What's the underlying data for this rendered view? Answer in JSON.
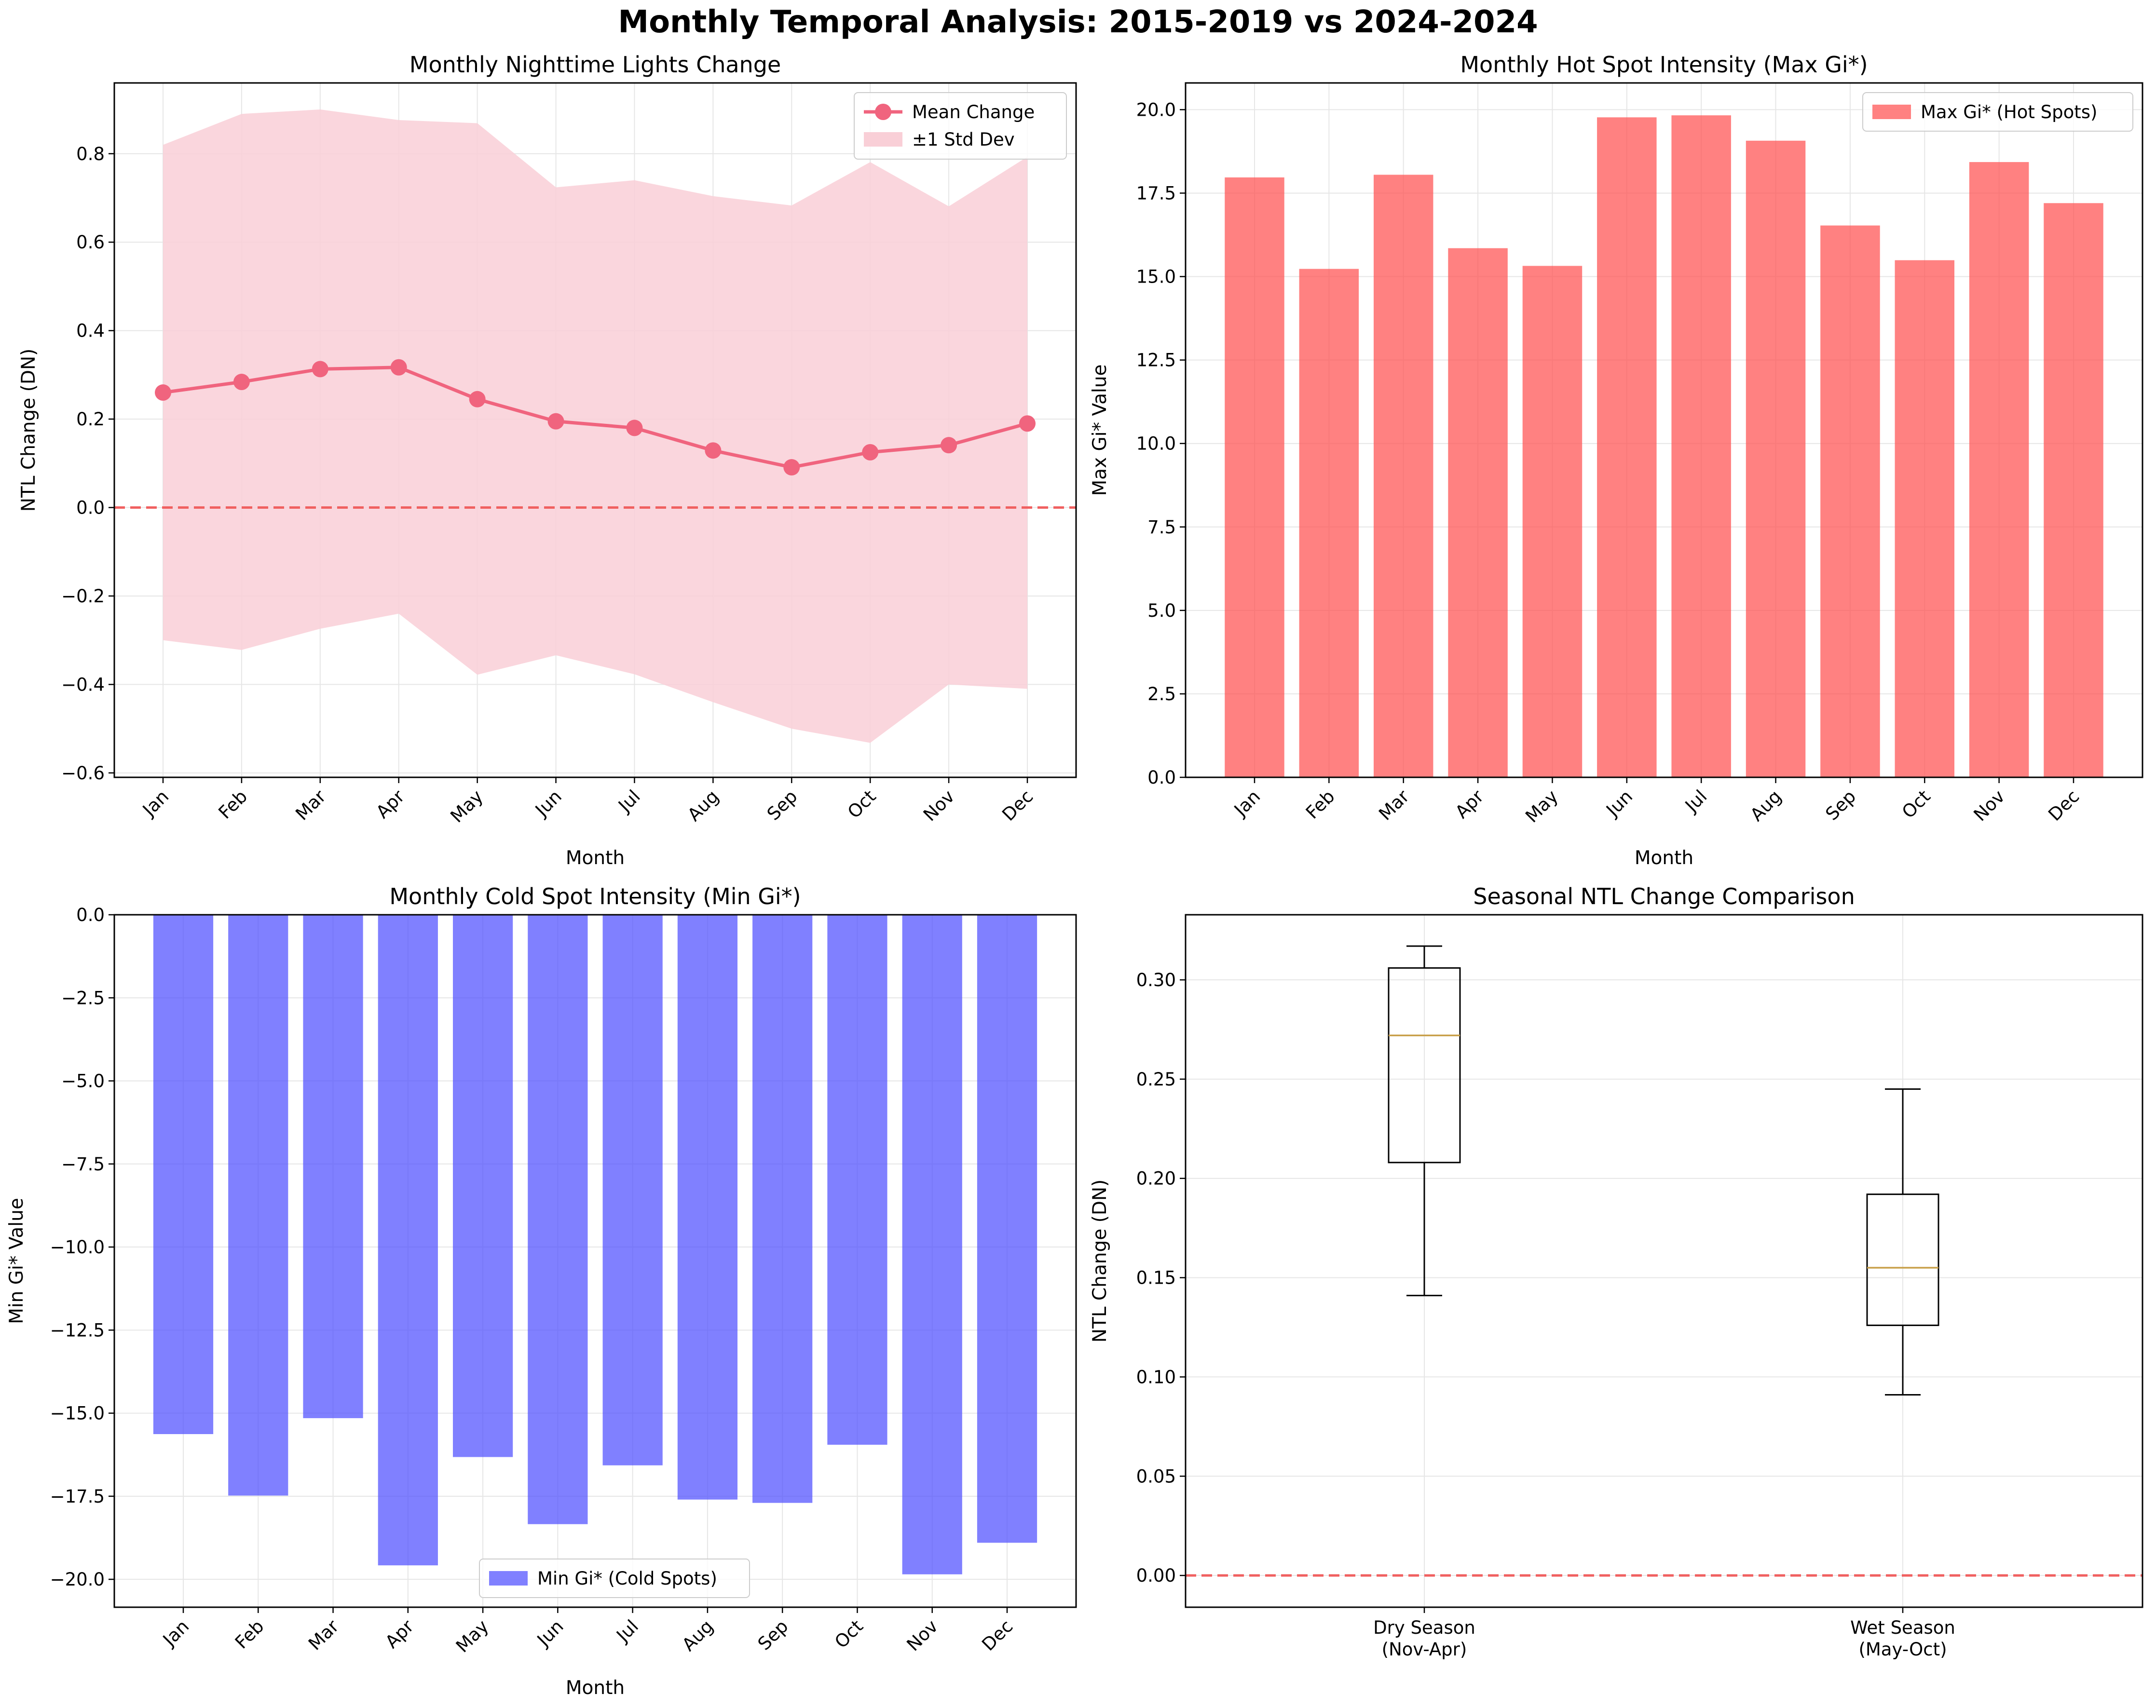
{
  "figure": {
    "title": "Monthly Temporal Analysis: 2015-2019 vs 2024-2024",
    "colors": {
      "mean_line": "#f0647e",
      "std_band": "#f9cfd7",
      "hot_bar": "#ff4c4c",
      "cold_bar": "#4a4aff",
      "zero_line": "#f06060",
      "median": "#c8a04a",
      "grid": "#e6e6e6"
    }
  },
  "chart_data": [
    {
      "id": "ntl",
      "type": "line",
      "title": "Monthly Nighttime Lights Change",
      "xlabel": "Month",
      "ylabel": "NTL Change (DN)",
      "categories": [
        "Jan",
        "Feb",
        "Mar",
        "Apr",
        "May",
        "Jun",
        "Jul",
        "Aug",
        "Sep",
        "Oct",
        "Nov",
        "Dec"
      ],
      "series": [
        {
          "name": "Mean Change",
          "values": [
            0.26,
            0.284,
            0.313,
            0.317,
            0.245,
            0.195,
            0.18,
            0.129,
            0.091,
            0.125,
            0.141,
            0.19
          ]
        }
      ],
      "band": {
        "name": "±1 Std Dev",
        "upper": [
          0.82,
          0.89,
          0.9,
          0.876,
          0.869,
          0.724,
          0.74,
          0.704,
          0.683,
          0.781,
          0.681,
          0.793
        ],
        "lower": [
          -0.3,
          -0.322,
          -0.274,
          -0.24,
          -0.378,
          -0.334,
          -0.377,
          -0.44,
          -0.5,
          -0.532,
          -0.4,
          -0.41
        ]
      },
      "ylim": [
        -0.61,
        0.96
      ],
      "yticks": [
        -0.6,
        -0.4,
        -0.2,
        0.0,
        0.2,
        0.4,
        0.6,
        0.8
      ],
      "ytick_labels": [
        "−0.6",
        "−0.4",
        "−0.2",
        "0.0",
        "0.2",
        "0.4",
        "0.6",
        "0.8"
      ],
      "zero_line": true,
      "grid": true,
      "legend": "top-right"
    },
    {
      "id": "hot",
      "type": "bar",
      "title": "Monthly Hot Spot Intensity (Max Gi*)",
      "xlabel": "Month",
      "ylabel": "Max Gi* Value",
      "categories": [
        "Jan",
        "Feb",
        "Mar",
        "Apr",
        "May",
        "Jun",
        "Jul",
        "Aug",
        "Sep",
        "Oct",
        "Nov",
        "Dec"
      ],
      "series": [
        {
          "name": "Max Gi* (Hot Spots)",
          "values": [
            17.97,
            15.23,
            18.05,
            15.85,
            15.32,
            19.77,
            19.83,
            19.07,
            16.53,
            15.49,
            18.43,
            17.2
          ]
        }
      ],
      "ylim": [
        0,
        20.8
      ],
      "yticks": [
        0,
        2.5,
        5,
        7.5,
        10,
        12.5,
        15,
        17.5,
        20
      ],
      "ytick_labels": [
        "0.0",
        "2.5",
        "5.0",
        "7.5",
        "10.0",
        "12.5",
        "15.0",
        "17.5",
        "20.0"
      ],
      "grid": true,
      "legend": "top-right"
    },
    {
      "id": "cold",
      "type": "bar",
      "title": "Monthly Cold Spot Intensity (Min Gi*)",
      "xlabel": "Month",
      "ylabel": "Min Gi* Value",
      "categories": [
        "Jan",
        "Feb",
        "Mar",
        "Apr",
        "May",
        "Jun",
        "Jul",
        "Aug",
        "Sep",
        "Oct",
        "Nov",
        "Dec"
      ],
      "series": [
        {
          "name": "Min Gi* (Cold Spots)",
          "values": [
            -15.63,
            -17.48,
            -15.15,
            -19.58,
            -16.32,
            -18.34,
            -16.57,
            -17.6,
            -17.7,
            -15.95,
            -19.85,
            -18.9
          ]
        }
      ],
      "ylim": [
        -20.84,
        0
      ],
      "yticks": [
        0,
        -2.5,
        -5,
        -7.5,
        -10,
        -12.5,
        -15,
        -17.5,
        -20
      ],
      "ytick_labels": [
        "0.0",
        "−2.5",
        "−5.0",
        "−7.5",
        "−10.0",
        "−12.5",
        "−15.0",
        "−17.5",
        "−20.0"
      ],
      "grid": true,
      "legend": "bottom-center"
    },
    {
      "id": "season",
      "type": "box",
      "title": "Seasonal NTL Change Comparison",
      "ylabel": "NTL Change (DN)",
      "categories": [
        {
          "line1": "Dry Season",
          "line2": "(Nov-Apr)"
        },
        {
          "line1": "Wet Season",
          "line2": "(May-Oct)"
        }
      ],
      "boxes": [
        {
          "whisker_low": 0.141,
          "q1": 0.208,
          "median": 0.272,
          "q3": 0.306,
          "whisker_high": 0.317
        },
        {
          "whisker_low": 0.091,
          "q1": 0.126,
          "median": 0.155,
          "q3": 0.192,
          "whisker_high": 0.245
        }
      ],
      "ylim": [
        -0.016,
        0.3328
      ],
      "yticks": [
        0,
        0.05,
        0.1,
        0.15,
        0.2,
        0.25,
        0.3
      ],
      "ytick_labels": [
        "0.00",
        "0.05",
        "0.10",
        "0.15",
        "0.20",
        "0.25",
        "0.30"
      ],
      "zero_line": true,
      "grid": true
    }
  ]
}
